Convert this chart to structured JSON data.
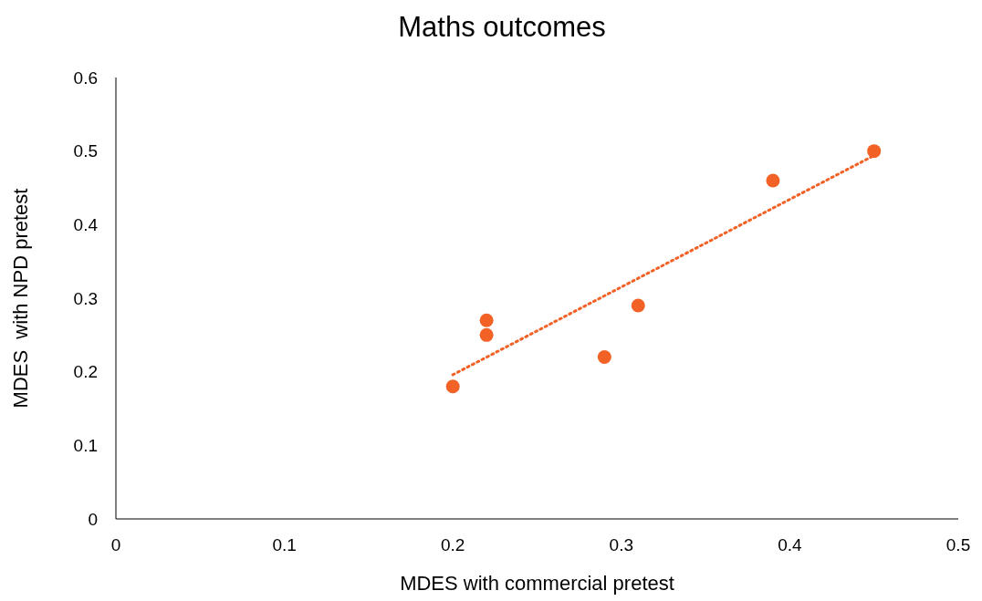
{
  "chart_data": {
    "type": "scatter",
    "title": "Maths outcomes",
    "xlabel": "MDES with commercial pretest",
    "ylabel": "MDES  with NPD pretest",
    "xlim": [
      0,
      0.5
    ],
    "xticks": [
      0,
      0.1,
      0.2,
      0.3,
      0.4,
      0.5
    ],
    "ylim": [
      0,
      0.6
    ],
    "yticks": [
      0,
      0.1,
      0.2,
      0.3,
      0.4,
      0.5,
      0.6
    ],
    "grid": false,
    "marker": "circle",
    "series": [
      {
        "color": "#f26125",
        "x": [
          0.2,
          0.22,
          0.22,
          0.29,
          0.31,
          0.39,
          0.45
        ],
        "values": [
          0.18,
          0.27,
          0.25,
          0.22,
          0.29,
          0.46,
          0.5
        ]
      },
      {
        "type": "line",
        "color": "#f26125",
        "line_style": "dotted",
        "marker": "none",
        "x": [
          0.2,
          0.45
        ],
        "values": [
          0.196,
          0.494
        ]
      }
    ]
  }
}
